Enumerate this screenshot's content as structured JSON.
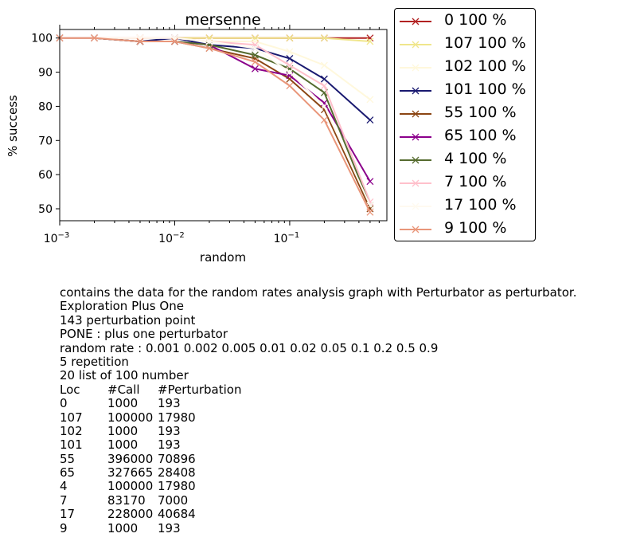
{
  "chart_data": {
    "type": "line",
    "title": "mersenne",
    "xlabel": "random",
    "ylabel": "% success",
    "xscale": "log",
    "xlim": [
      0.001,
      0.7
    ],
    "ylim": [
      46.5,
      102.5
    ],
    "yticks": [
      50,
      60,
      70,
      80,
      90,
      100
    ],
    "xticks": [
      0.001,
      0.01,
      0.1
    ],
    "xtick_labels": [
      [
        "10",
        "−3"
      ],
      [
        "10",
        "−2"
      ],
      [
        "10",
        "−1"
      ]
    ],
    "marker": "x",
    "legend_position": "outside-right",
    "x": [
      0.001,
      0.002,
      0.005,
      0.01,
      0.02,
      0.05,
      0.1,
      0.2,
      0.5
    ],
    "series": [
      {
        "name": "0 100 %",
        "color": "#b22222",
        "values": [
          100,
          100,
          100,
          100,
          100,
          100,
          100,
          100,
          100
        ]
      },
      {
        "name": "107 100 %",
        "color": "#f0e68c",
        "values": [
          100,
          100,
          100,
          100,
          100,
          100,
          100,
          100,
          99
        ]
      },
      {
        "name": "102 100 %",
        "color": "#fff8dc",
        "values": [
          100,
          100,
          100,
          100,
          99,
          99,
          96,
          92,
          82
        ]
      },
      {
        "name": "101 100 %",
        "color": "#191970",
        "values": [
          100,
          100,
          99,
          100,
          98,
          97,
          94,
          88,
          76
        ]
      },
      {
        "name": "55 100 %",
        "color": "#8b4513",
        "values": [
          100,
          100,
          99,
          99,
          97,
          94,
          88,
          79,
          50
        ]
      },
      {
        "name": "65 100 %",
        "color": "#8b008b",
        "values": [
          100,
          100,
          99,
          99,
          98,
          91,
          89,
          81,
          58
        ]
      },
      {
        "name": "4 100 %",
        "color": "#556b2f",
        "values": [
          100,
          100,
          99,
          99,
          98,
          95,
          91,
          84,
          51
        ]
      },
      {
        "name": "7 100 %",
        "color": "#ffc0cb",
        "values": [
          100,
          100,
          100,
          100,
          99,
          98,
          92,
          86,
          52
        ]
      },
      {
        "name": "17 100 %",
        "color": "#fffaf0",
        "values": [
          100,
          100,
          100,
          100,
          99,
          97,
          90,
          80,
          51
        ]
      },
      {
        "name": "9 100 %",
        "color": "#e9967a",
        "values": [
          100,
          100,
          99,
          99,
          97,
          93,
          86,
          76,
          49
        ]
      }
    ]
  },
  "info": {
    "lines": [
      "contains the data for the random rates analysis graph with Perturbator as perturbator.",
      "Exploration Plus One",
      "143 perturbation point",
      "PONE : plus one perturbator",
      "random rate : 0.001 0.002 0.005 0.01 0.02 0.05 0.1 0.2 0.5 0.9",
      "5 repetition",
      "20 list of 100 number"
    ],
    "table_header": [
      "Loc",
      "#Call",
      "#Perturbation"
    ],
    "table_rows": [
      [
        "0",
        "1000",
        "193"
      ],
      [
        "107",
        "100000",
        "17980"
      ],
      [
        "102",
        "1000",
        "193"
      ],
      [
        "101",
        "1000",
        "193"
      ],
      [
        "55",
        "396000",
        "70896"
      ],
      [
        "65",
        "327665",
        "28408"
      ],
      [
        "4",
        "100000",
        "17980"
      ],
      [
        "7",
        "83170",
        "7000"
      ],
      [
        "17",
        "228000",
        "40684"
      ],
      [
        "9",
        "1000",
        "193"
      ]
    ]
  }
}
